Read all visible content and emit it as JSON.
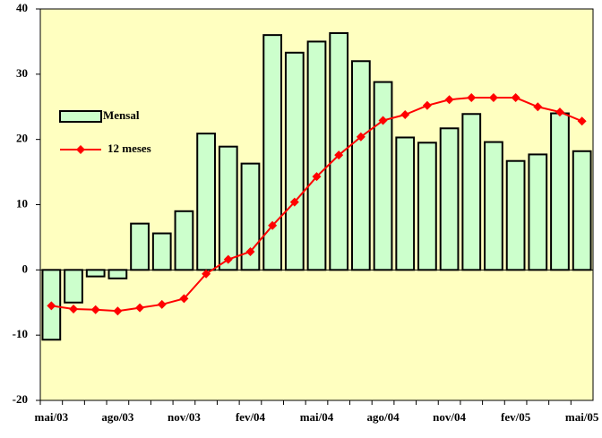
{
  "chart_data": {
    "type": "bar",
    "categories": [
      "mai/03",
      null,
      null,
      "ago/03",
      null,
      null,
      "nov/03",
      null,
      null,
      "fev/04",
      null,
      null,
      "mai/04",
      null,
      null,
      "ago/04",
      null,
      null,
      "nov/04",
      null,
      null,
      "fev/05",
      null,
      null,
      "mai/05"
    ],
    "series": [
      {
        "name": "Mensal",
        "type": "bar",
        "color": "#ccffcc",
        "values": [
          -10.7,
          -5.0,
          -1.0,
          -1.3,
          7.1,
          5.6,
          9.0,
          20.9,
          18.9,
          16.3,
          36.0,
          33.3,
          35.0,
          36.3,
          32.0,
          28.8,
          20.3,
          19.5,
          21.7,
          23.9,
          19.6,
          16.7,
          17.7,
          24.0,
          18.2
        ]
      },
      {
        "name": "12 meses",
        "type": "line",
        "color": "#ff0000",
        "values": [
          -5.5,
          -6.0,
          -6.1,
          -6.3,
          -5.8,
          -5.3,
          -4.4,
          -0.6,
          1.6,
          2.8,
          6.8,
          10.4,
          14.3,
          17.6,
          20.4,
          22.9,
          23.8,
          25.2,
          26.1,
          26.4,
          26.4,
          26.4,
          25.0,
          24.2,
          22.8
        ]
      }
    ],
    "ylim": [
      -20,
      40
    ],
    "yticks": [
      -20,
      -10,
      0,
      10,
      20,
      30,
      40
    ],
    "grid": false,
    "legend": "left"
  }
}
